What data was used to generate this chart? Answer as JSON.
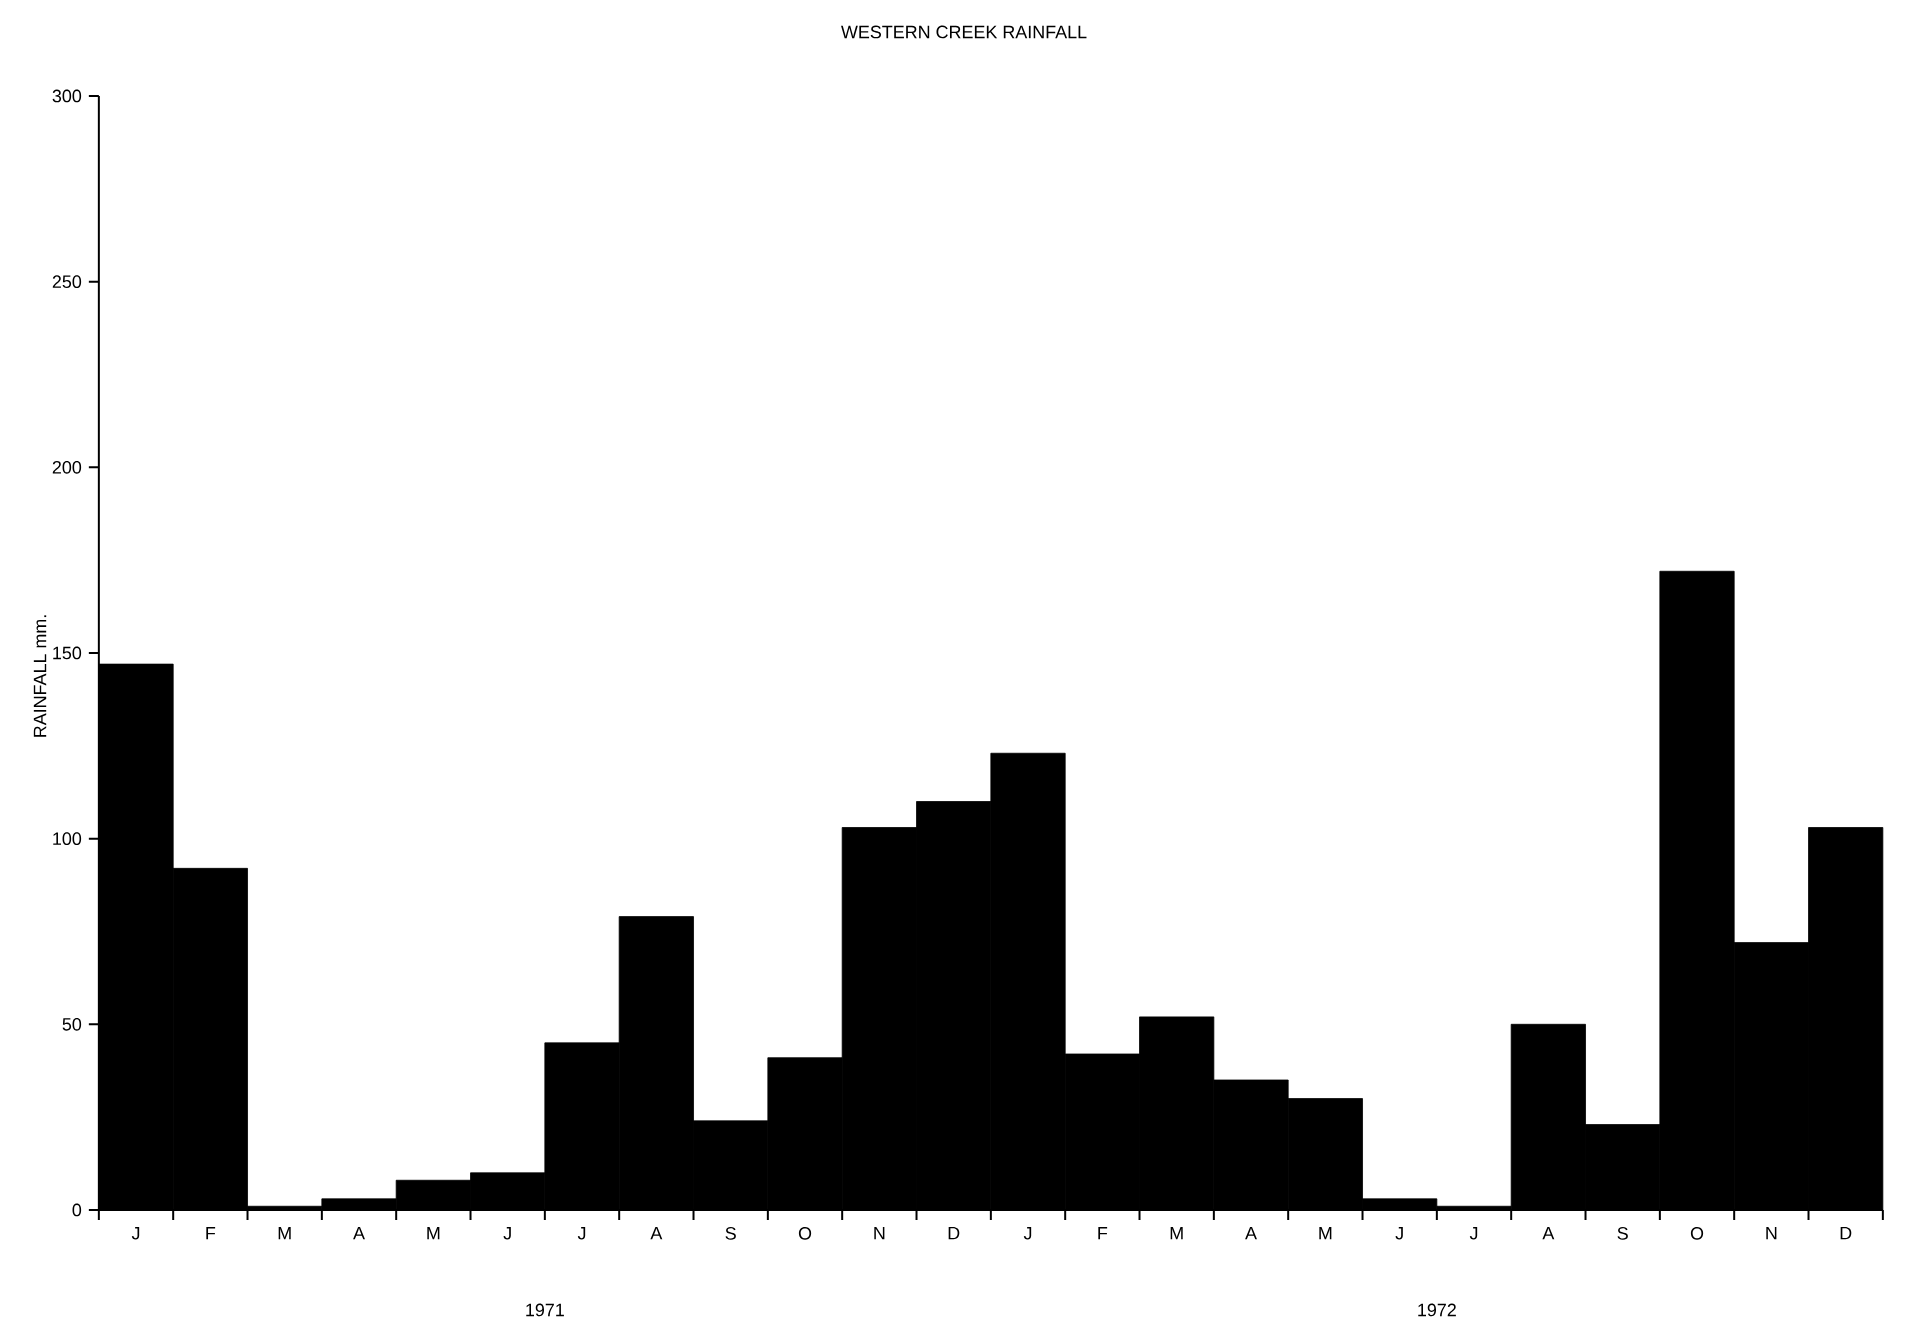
{
  "chart_data": {
    "type": "bar",
    "title": "WESTERN CREEK RAINFALL",
    "ylabel": "RAINFALL mm.",
    "categories": [
      "J",
      "F",
      "M",
      "A",
      "M",
      "J",
      "J",
      "A",
      "S",
      "O",
      "N",
      "D",
      "J",
      "F",
      "M",
      "A",
      "M",
      "J",
      "J",
      "A",
      "S",
      "O",
      "N",
      "D"
    ],
    "values": [
      147,
      92,
      1,
      3,
      8,
      10,
      45,
      79,
      24,
      41,
      103,
      110,
      123,
      42,
      52,
      35,
      30,
      3,
      1,
      50,
      23,
      172,
      72,
      103
    ],
    "color": "#000000",
    "ylim": [
      0,
      300
    ],
    "yticks": [
      0,
      50,
      100,
      150,
      200,
      250,
      300
    ],
    "annotations": [
      "1971",
      "1972"
    ]
  }
}
